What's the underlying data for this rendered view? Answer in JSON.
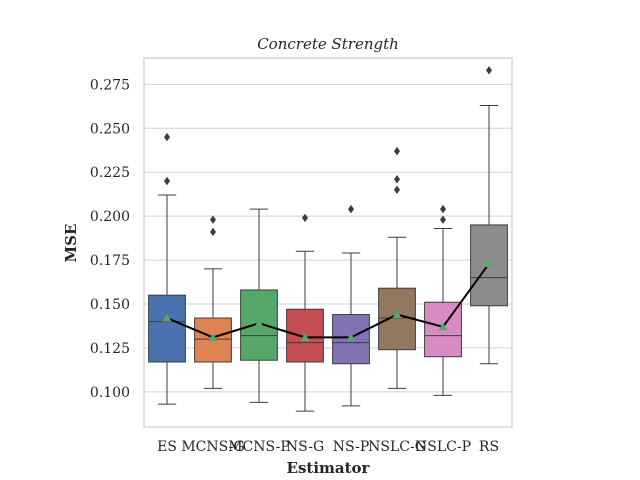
{
  "chart_data": {
    "type": "box",
    "title": "Concrete Strength",
    "xlabel": "Estimator",
    "ylabel": "MSE",
    "ylim": [
      0.08,
      0.29
    ],
    "yticks": [
      0.1,
      0.125,
      0.15,
      0.175,
      0.2,
      0.225,
      0.25,
      0.275
    ],
    "ytick_labels": [
      "0.100",
      "0.125",
      "0.150",
      "0.175",
      "0.200",
      "0.225",
      "0.250",
      "0.275"
    ],
    "grid": true,
    "categories": [
      "ES",
      "MCNS-G",
      "MCNS-P",
      "NS-G",
      "NS-P",
      "NSLC-G",
      "NSLC-P",
      "RS"
    ],
    "boxes": [
      {
        "color": "#4c72b0",
        "whisker_low": 0.093,
        "q1": 0.117,
        "median": 0.14,
        "q3": 0.155,
        "whisker_high": 0.212,
        "mean": 0.142,
        "outliers": [
          0.22,
          0.245
        ]
      },
      {
        "color": "#dd8452",
        "whisker_low": 0.102,
        "q1": 0.117,
        "median": 0.13,
        "q3": 0.142,
        "whisker_high": 0.17,
        "mean": 0.131,
        "outliers": [
          0.191,
          0.198
        ]
      },
      {
        "color": "#55a868",
        "whisker_low": 0.094,
        "q1": 0.118,
        "median": 0.132,
        "q3": 0.158,
        "whisker_high": 0.204,
        "mean": 0.139,
        "outliers": []
      },
      {
        "color": "#c44e52",
        "whisker_low": 0.089,
        "q1": 0.117,
        "median": 0.128,
        "q3": 0.147,
        "whisker_high": 0.18,
        "mean": 0.131,
        "outliers": [
          0.199
        ]
      },
      {
        "color": "#8172b3",
        "whisker_low": 0.092,
        "q1": 0.116,
        "median": 0.128,
        "q3": 0.144,
        "whisker_high": 0.179,
        "mean": 0.131,
        "outliers": [
          0.204
        ]
      },
      {
        "color": "#937860",
        "whisker_low": 0.102,
        "q1": 0.124,
        "median": 0.142,
        "q3": 0.159,
        "whisker_high": 0.188,
        "mean": 0.144,
        "outliers": [
          0.215,
          0.221,
          0.237
        ]
      },
      {
        "color": "#da8bc3",
        "whisker_low": 0.098,
        "q1": 0.12,
        "median": 0.132,
        "q3": 0.151,
        "whisker_high": 0.193,
        "mean": 0.137,
        "outliers": [
          0.198,
          0.204
        ]
      },
      {
        "color": "#8c8c8c",
        "whisker_low": 0.116,
        "q1": 0.149,
        "median": 0.165,
        "q3": 0.195,
        "whisker_high": 0.263,
        "mean": 0.173,
        "outliers": [
          0.283
        ]
      }
    ],
    "mean_line_color": "#000000",
    "mean_marker_color": "#55a868",
    "outlier_color": "#3d3d3d"
  }
}
